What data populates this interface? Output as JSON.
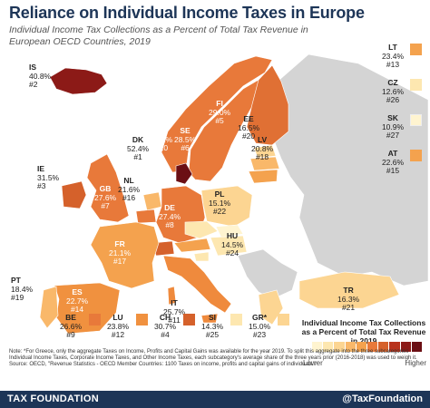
{
  "header": {
    "title": "Reliance on Individual Income Taxes in Europe",
    "subtitle": "Individual Income Tax Collections as a Percent of Total Tax Revenue in European OECD Countries, 2019"
  },
  "countries": {
    "IS": {
      "code": "IS",
      "value": "40.8%",
      "rank": "#2"
    },
    "IE": {
      "code": "IE",
      "value": "31.5%",
      "rank": "#3"
    },
    "GB": {
      "code": "GB",
      "value": "27.6%",
      "rank": "#7"
    },
    "NO": {
      "code": "NO",
      "value": "26.1%",
      "rank": "#10"
    },
    "SE": {
      "code": "SE",
      "value": "28.5%",
      "rank": "#6"
    },
    "FI": {
      "code": "FI",
      "value": "29.0%",
      "rank": "#5"
    },
    "DK": {
      "code": "DK",
      "value": "52.4%",
      "rank": "#1"
    },
    "NL": {
      "code": "NL",
      "value": "21.6%",
      "rank": "#16"
    },
    "DE": {
      "code": "DE",
      "value": "27.4%",
      "rank": "#8"
    },
    "EE": {
      "code": "EE",
      "value": "16.5%",
      "rank": "#20"
    },
    "LV": {
      "code": "LV",
      "value": "20.8%",
      "rank": "#18"
    },
    "PL": {
      "code": "PL",
      "value": "15.1%",
      "rank": "#22"
    },
    "FR": {
      "code": "FR",
      "value": "21.1%",
      "rank": "#17"
    },
    "HU": {
      "code": "HU",
      "value": "14.5%",
      "rank": "#24"
    },
    "PT": {
      "code": "PT",
      "value": "18.4%",
      "rank": "#19"
    },
    "ES": {
      "code": "ES",
      "value": "22.7%",
      "rank": "#14"
    },
    "IT": {
      "code": "IT",
      "value": "25.7%",
      "rank": "#11"
    },
    "TR": {
      "code": "TR",
      "value": "16.3%",
      "rank": "#21"
    }
  },
  "side_list": [
    {
      "code": "LT",
      "value": "23.4%",
      "rank": "#13",
      "color": "#f4a24e"
    },
    {
      "code": "CZ",
      "value": "12.6%",
      "rank": "#26",
      "color": "#fde7b0"
    },
    {
      "code": "SK",
      "value": "10.9%",
      "rank": "#27",
      "color": "#fff4d0"
    },
    {
      "code": "AT",
      "value": "22.6%",
      "rank": "#15",
      "color": "#f4a24e"
    }
  ],
  "bottom_list": [
    {
      "code": "BE",
      "value": "26.6%",
      "rank": "#9",
      "color": "#e8793a"
    },
    {
      "code": "LU",
      "value": "23.8%",
      "rank": "#12",
      "color": "#f0913f"
    },
    {
      "code": "CH",
      "value": "30.7%",
      "rank": "#4",
      "color": "#d5612b"
    },
    {
      "code": "SI",
      "value": "14.3%",
      "rank": "#25",
      "color": "#fde7b0"
    },
    {
      "code": "GR*",
      "value": "15.0%",
      "rank": "#23",
      "color": "#fcd592"
    }
  ],
  "legend": {
    "title": "Individual Income Tax Collections as a Percent of Total Tax Revenue in 2019",
    "low_label": "Lower",
    "high_label": "Higher",
    "colors": [
      "#fff4d0",
      "#fde7b0",
      "#fcd592",
      "#f9b86a",
      "#f4a24e",
      "#e8793a",
      "#d5612b",
      "#b8331c",
      "#8c1a17",
      "#6b0f14"
    ]
  },
  "note": {
    "line1": "Note: *For Greece, only the aggregate Taxes on Income, Profits and Capital Gains was available for the year 2019. To split this aggregate into the three subcategories Individual Income Taxes, Corporate Income Taxes, and Other Income Taxes, each subcategory's average share of the three years prior (2016-2018) was used to weigh it.",
    "line2": "Source: OECD, \"Revenue Statistics - OECD Member Countries: 1100 Taxes on income, profits and capital gains of individuals.\""
  },
  "footer": {
    "org": "TAX FOUNDATION",
    "handle": "@TaxFoundation"
  }
}
